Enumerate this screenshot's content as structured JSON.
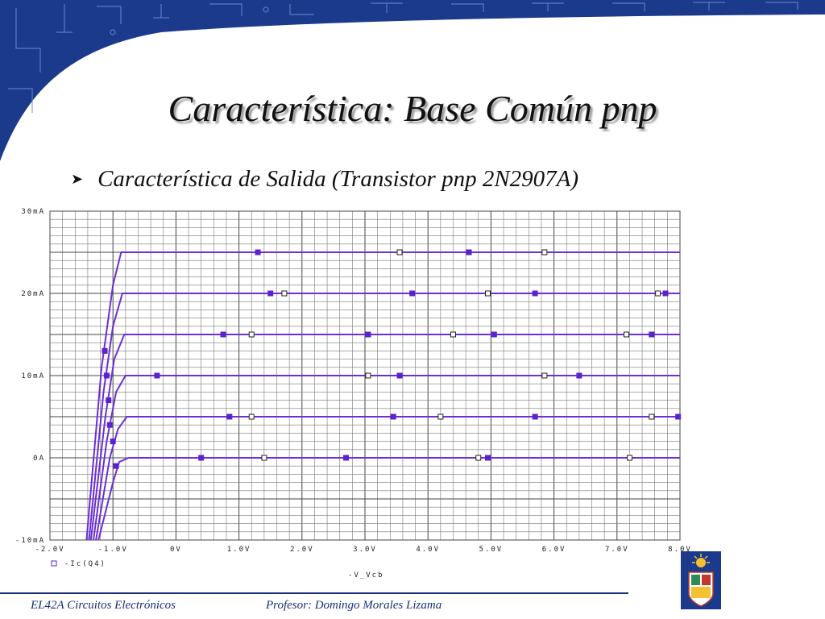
{
  "slide": {
    "title": "Característica: Base Común pnp",
    "bullet": "Característica de Salida (Transistor pnp 2N2907A)",
    "bullet_icon": "arrow-bullet-icon"
  },
  "footer": {
    "course": "EL42A Circuitos Electrónicos",
    "professor": "Profesor: Domingo Morales Lizama"
  },
  "colors": {
    "banner": "#1c3a8c",
    "curve": "#6a2fd6",
    "marker": "#5a22d0",
    "footer": "#1a2f7a"
  },
  "chart_data": {
    "type": "line",
    "x_ticks": [
      "-2.0V",
      "-1.0V",
      "0V",
      "1.0V",
      "2.0V",
      "3.0V",
      "4.0V",
      "5.0V",
      "6.0V",
      "7.0V",
      "8.0V"
    ],
    "y_ticks": [
      "30mA",
      "20mA",
      "10mA",
      "0A",
      "-10mA"
    ],
    "xlabel": "-V_Vcb",
    "legend": "-Ic(Q4)",
    "xlim": [
      -2,
      8
    ],
    "ylim": [
      -10,
      30
    ],
    "grid": true,
    "series": [
      {
        "plateau": 0,
        "rise_start": -1.23,
        "values_x": [
          -1.23,
          -1.0,
          -0.9,
          -0.75,
          -0.7,
          8.0
        ],
        "values_y": [
          -10,
          -3,
          -0.5,
          0,
          0,
          0
        ]
      },
      {
        "plateau": 5,
        "rise_start": -1.27,
        "values_x": [
          -1.27,
          -1.05,
          -0.92,
          -0.78,
          -0.72,
          8.0
        ],
        "values_y": [
          -10,
          0,
          3.5,
          5,
          5,
          5
        ]
      },
      {
        "plateau": 10,
        "rise_start": -1.31,
        "values_x": [
          -1.31,
          -1.1,
          -0.95,
          -0.8,
          -0.72,
          8.0
        ],
        "values_y": [
          -10,
          2,
          8,
          10,
          10,
          10
        ]
      },
      {
        "plateau": 15,
        "rise_start": -1.35,
        "values_x": [
          -1.35,
          -1.12,
          -0.98,
          -0.82,
          -0.74,
          8.0
        ],
        "values_y": [
          -10,
          5,
          12,
          15,
          15,
          15
        ]
      },
      {
        "plateau": 20,
        "rise_start": -1.38,
        "values_x": [
          -1.38,
          -1.15,
          -1.0,
          -0.85,
          -0.75,
          8.0
        ],
        "values_y": [
          -10,
          8,
          16,
          20,
          20,
          20
        ]
      },
      {
        "plateau": 25,
        "rise_start": -1.42,
        "values_x": [
          -1.42,
          -1.18,
          -1.0,
          -0.87,
          -0.75,
          8.0
        ],
        "values_y": [
          -10,
          11,
          21,
          25,
          25,
          25
        ]
      }
    ]
  }
}
